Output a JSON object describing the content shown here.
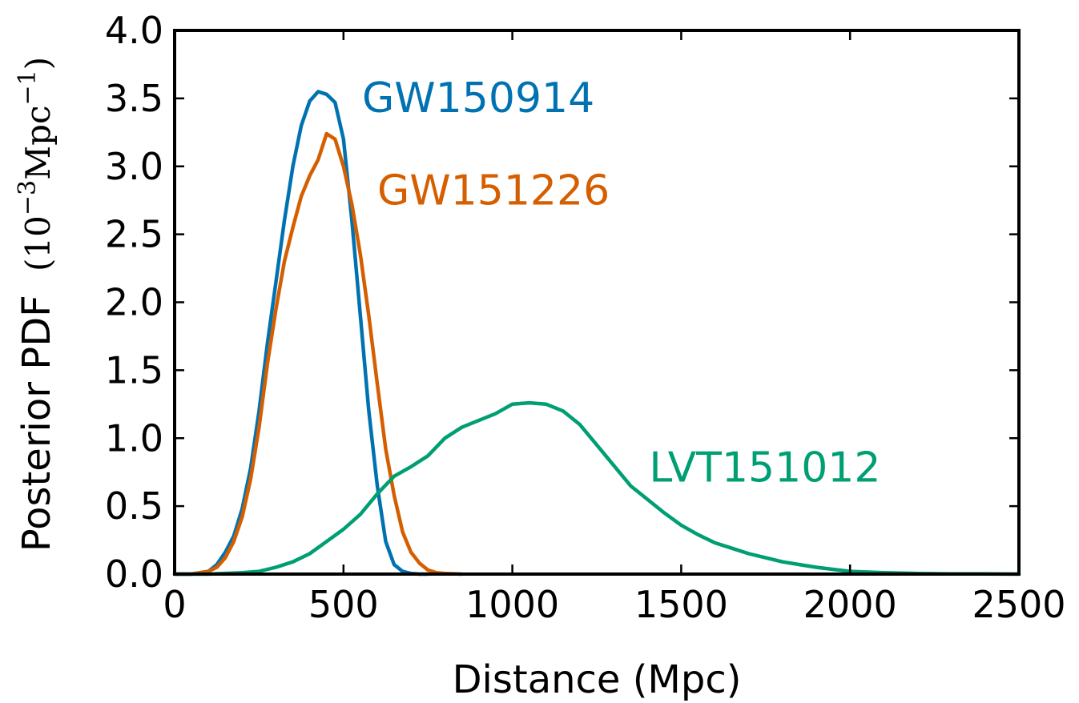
{
  "chart_data": {
    "type": "line",
    "xlabel": "Distance (Mpc)",
    "ylabel": "Posterior PDF",
    "ylabel_unit": {
      "base": "(10",
      "exp1": "−3",
      "mid": "Mpc",
      "exp2": "−1",
      "end": ")"
    },
    "xlim": [
      0,
      2500
    ],
    "ylim": [
      0,
      4.0
    ],
    "xticks": [
      0,
      500,
      1000,
      1500,
      2000,
      2500
    ],
    "xtick_labels": [
      "0",
      "500",
      "1000",
      "1500",
      "2000",
      "2500"
    ],
    "yticks": [
      0,
      0.5,
      1.0,
      1.5,
      2.0,
      2.5,
      3.0,
      3.5,
      4.0
    ],
    "ytick_labels": [
      "0.0",
      "0.5",
      "1.0",
      "1.5",
      "2.0",
      "2.5",
      "3.0",
      "3.5",
      "4.0"
    ],
    "grid": false,
    "series": [
      {
        "name": "GW150914",
        "color": "#0072b2",
        "x": [
          0,
          50,
          100,
          125,
          150,
          175,
          200,
          225,
          250,
          275,
          300,
          325,
          350,
          375,
          400,
          425,
          450,
          475,
          500,
          525,
          550,
          575,
          600,
          625,
          650,
          675,
          700,
          725,
          750
        ],
        "y": [
          0,
          0.0,
          0.02,
          0.07,
          0.16,
          0.28,
          0.48,
          0.78,
          1.2,
          1.7,
          2.15,
          2.6,
          3.0,
          3.3,
          3.48,
          3.55,
          3.53,
          3.47,
          3.2,
          2.6,
          1.9,
          1.2,
          0.65,
          0.24,
          0.07,
          0.02,
          0.005,
          0,
          0
        ]
      },
      {
        "name": "GW151226",
        "color": "#d55e00",
        "x": [
          0,
          50,
          100,
          125,
          150,
          175,
          200,
          225,
          250,
          275,
          300,
          325,
          350,
          375,
          400,
          425,
          450,
          475,
          500,
          525,
          550,
          575,
          600,
          625,
          650,
          675,
          700,
          725,
          750,
          775,
          800,
          850
        ],
        "y": [
          0,
          0.0,
          0.02,
          0.05,
          0.12,
          0.24,
          0.42,
          0.7,
          1.08,
          1.55,
          1.95,
          2.3,
          2.55,
          2.78,
          2.93,
          3.05,
          3.24,
          3.2,
          3.0,
          2.72,
          2.35,
          1.9,
          1.4,
          0.92,
          0.58,
          0.31,
          0.16,
          0.08,
          0.03,
          0.01,
          0.005,
          0
        ]
      },
      {
        "name": "LVT151012",
        "color": "#009e73",
        "x": [
          0,
          100,
          200,
          250,
          300,
          350,
          400,
          450,
          500,
          550,
          600,
          650,
          700,
          750,
          800,
          850,
          900,
          950,
          1000,
          1050,
          1100,
          1150,
          1200,
          1250,
          1300,
          1350,
          1400,
          1450,
          1500,
          1550,
          1600,
          1650,
          1700,
          1750,
          1800,
          1850,
          1900,
          1950,
          2000,
          2100,
          2200,
          2300,
          2400,
          2500
        ],
        "y": [
          0,
          0.0,
          0.01,
          0.02,
          0.05,
          0.09,
          0.15,
          0.24,
          0.33,
          0.44,
          0.59,
          0.72,
          0.79,
          0.87,
          1.0,
          1.08,
          1.13,
          1.18,
          1.25,
          1.26,
          1.25,
          1.2,
          1.1,
          0.95,
          0.8,
          0.65,
          0.55,
          0.45,
          0.36,
          0.29,
          0.23,
          0.19,
          0.15,
          0.12,
          0.09,
          0.07,
          0.05,
          0.035,
          0.02,
          0.01,
          0.005,
          0.002,
          0.001,
          0
        ]
      }
    ],
    "annotations": [
      {
        "text": "GW150914",
        "x": 555,
        "y": 3.4,
        "color": "#0072b2"
      },
      {
        "text": "GW151226",
        "x": 600,
        "y": 2.72,
        "color": "#d55e00"
      },
      {
        "text": "LVT151012",
        "x": 1405,
        "y": 0.68,
        "color": "#009e73"
      }
    ]
  }
}
